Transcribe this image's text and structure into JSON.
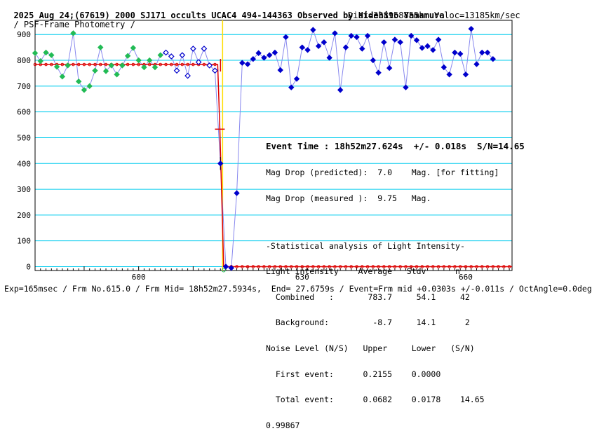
{
  "header": {
    "title": "2025 Aug 24;(67619) 2000 SJ171 occults UCAC4 494-144363 Observed by Hidehito Yamamura",
    "method": "/ PSF-Frame Photometry /",
    "distance": "Dist=338958855km Veloc=13185km/sec"
  },
  "stats": {
    "event_time": "Event Time : 18h52m27.624s  +/- 0.018s  S/N=14.65",
    "mag_pred": "Mag Drop (predicted):  7.0    Mag. [for fitting]",
    "mag_meas": "Mag Drop (measured ):  9.75   Mag.",
    "stat_title": "-Statistical analysis of Light Intensity-",
    "col_head": "Light intensity    Average   Stdv      n",
    "combined": "  Combined   :       783.7     54.1     42",
    "background": "  Background:         -8.7     14.1      2",
    "noise_head": "Noise Level (N/S)   Upper     Lower   (S/N)",
    "first": "  First event:      0.2155    0.0000",
    "total": "  Total event:      0.0682    0.0178    14.65",
    "corr": "0.99867"
  },
  "footer": "Exp=165msec / Frm No.615.0 / Frm Mid= 18h52m27.5934s,  End= 27.6759s / Event=Frm mid +0.0303s +/-0.011s / OctAngle=0.0deg",
  "colors": {
    "grid": "#00ccee",
    "green": "#22bb55",
    "blue": "#0000cc",
    "line": "#8888ee",
    "red": "#dd0000",
    "event": "#ffdd00"
  },
  "chart_data": {
    "type": "scatter",
    "xlim": [
      581,
      668.5
    ],
    "ylim": [
      -15,
      955
    ],
    "xticks": [
      600,
      630,
      660
    ],
    "yticks": [
      0,
      100,
      200,
      300,
      400,
      500,
      600,
      700,
      800,
      900
    ],
    "event_x": 615.4,
    "model": {
      "high_level": 783.7,
      "low_level": 0,
      "drop_start_x": 614.5,
      "mid_x": 614.9,
      "drop_end_x": 615.6,
      "mid_y": 533,
      "low_end_x": 616,
      "noise_errorbar": {
        "x": 615,
        "y": 400,
        "err": 25
      }
    },
    "series": [
      {
        "style": "green-filled",
        "points": [
          [
            581,
            828
          ],
          [
            582,
            797
          ],
          [
            583,
            830
          ],
          [
            584,
            820
          ],
          [
            585,
            775
          ],
          [
            586,
            737
          ],
          [
            587,
            780
          ],
          [
            588,
            905
          ],
          [
            589,
            718
          ],
          [
            590,
            685
          ],
          [
            591,
            700
          ],
          [
            592,
            760
          ],
          [
            593,
            850
          ],
          [
            594,
            758
          ],
          [
            595,
            780
          ],
          [
            596,
            745
          ],
          [
            597,
            780
          ],
          [
            598,
            817
          ],
          [
            599,
            848
          ],
          [
            600,
            800
          ],
          [
            601,
            773
          ],
          [
            602,
            800
          ],
          [
            603,
            773
          ],
          [
            604,
            820
          ]
        ]
      },
      {
        "style": "blue-open",
        "points": [
          [
            605,
            830
          ],
          [
            606,
            815
          ],
          [
            607,
            760
          ],
          [
            608,
            820
          ],
          [
            609,
            740
          ],
          [
            610,
            845
          ],
          [
            611,
            793
          ],
          [
            612,
            845
          ],
          [
            613,
            780
          ],
          [
            614,
            760
          ]
        ]
      },
      {
        "style": "blue-filled",
        "points": [
          [
            615,
            400
          ],
          [
            616,
            0
          ],
          [
            617,
            -5
          ],
          [
            618,
            285
          ],
          [
            619,
            790
          ],
          [
            620,
            785
          ],
          [
            621,
            805
          ],
          [
            622,
            828
          ],
          [
            623,
            810
          ],
          [
            624,
            820
          ],
          [
            625,
            830
          ],
          [
            626,
            762
          ],
          [
            627,
            890
          ],
          [
            628,
            695
          ],
          [
            629,
            728
          ],
          [
            630,
            850
          ],
          [
            631,
            840
          ],
          [
            632,
            918
          ],
          [
            633,
            855
          ],
          [
            634,
            870
          ],
          [
            635,
            810
          ],
          [
            636,
            905
          ],
          [
            637,
            685
          ],
          [
            638,
            850
          ],
          [
            639,
            895
          ],
          [
            640,
            890
          ],
          [
            641,
            845
          ],
          [
            642,
            895
          ],
          [
            643,
            800
          ],
          [
            644,
            752
          ],
          [
            645,
            870
          ],
          [
            646,
            770
          ],
          [
            647,
            880
          ],
          [
            648,
            870
          ],
          [
            649,
            695
          ],
          [
            650,
            895
          ],
          [
            651,
            878
          ],
          [
            652,
            848
          ],
          [
            653,
            855
          ],
          [
            654,
            840
          ],
          [
            655,
            880
          ],
          [
            656,
            773
          ],
          [
            657,
            745
          ],
          [
            658,
            830
          ],
          [
            659,
            825
          ],
          [
            660,
            745
          ],
          [
            661,
            922
          ],
          [
            662,
            785
          ],
          [
            663,
            830
          ],
          [
            664,
            830
          ],
          [
            665,
            805
          ]
        ]
      }
    ]
  }
}
